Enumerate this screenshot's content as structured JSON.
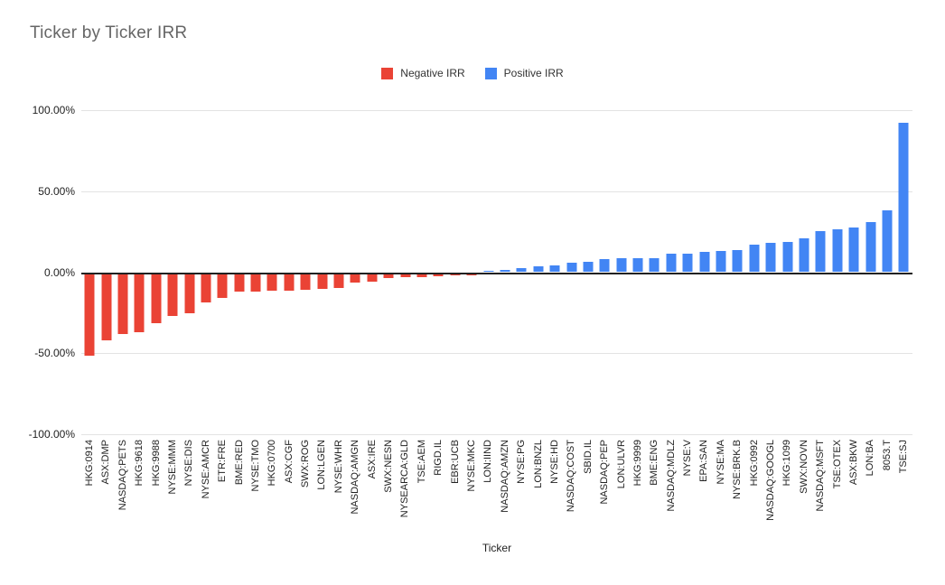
{
  "title": "Ticker by Ticker IRR",
  "legend": {
    "negative": {
      "label": "Negative IRR",
      "color": "#EA4335"
    },
    "positive": {
      "label": "Positive IRR",
      "color": "#4285F4"
    }
  },
  "x_axis_title": "Ticker",
  "chart_data": {
    "type": "bar",
    "title": "Ticker by Ticker IRR",
    "xlabel": "Ticker",
    "ylabel": "",
    "ylim": [
      -100,
      100
    ],
    "grid": true,
    "legend_position": "top-center",
    "y_ticks": [
      {
        "label": "100.00%",
        "value": 100
      },
      {
        "label": "50.00%",
        "value": 50
      },
      {
        "label": "0.00%",
        "value": 0
      },
      {
        "label": "-50.00%",
        "value": -50
      },
      {
        "label": "-100.00%",
        "value": -100
      }
    ],
    "negative_color": "#EA4335",
    "positive_color": "#4285F4",
    "categories": [
      "HKG:0914",
      "ASX:DMP",
      "NASDAQ:PETS",
      "HKG:9618",
      "HKG:9988",
      "NYSE:MMM",
      "NYSE:DIS",
      "NYSE:AMCR",
      "ETR:FRE",
      "BME:RED",
      "NYSE:TMO",
      "HKG:0700",
      "ASX:CGF",
      "SWX:ROG",
      "LON:LGEN",
      "NYSE:WHR",
      "NASDAQ:AMGN",
      "ASX:IRE",
      "SWX:NESN",
      "NYSEARCA:GLD",
      "TSE:AEM",
      "RIGD.IL",
      "EBR:UCB",
      "NYSE:MKC",
      "LON:IIND",
      "NASDAQ:AMZN",
      "NYSE:PG",
      "LON:BNZL",
      "NYSE:HD",
      "NASDAQ:COST",
      "SBID.IL",
      "NASDAQ:PEP",
      "LON:ULVR",
      "HKG:9999",
      "BME:ENG",
      "NASDAQ:MDLZ",
      "NYSE:V",
      "EPA:SAN",
      "NYSE:MA",
      "NYSE:BRK.B",
      "HKG:0992",
      "NASDAQ:GOOGL",
      "HKG:1099",
      "SWX:NOVN",
      "NASDAQ:MSFT",
      "TSE:OTEX",
      "ASX:BKW",
      "LON:BA",
      "8053.T",
      "TSE:SJ"
    ],
    "values": [
      -51.3,
      -42.0,
      -38.0,
      -37.0,
      -31.6,
      -27.0,
      -25.5,
      -18.6,
      -15.8,
      -12.0,
      -11.7,
      -11.5,
      -11.2,
      -10.6,
      -10.4,
      -10.0,
      -6.6,
      -5.7,
      -3.4,
      -3.3,
      -3.0,
      -2.6,
      -2.1,
      -1.7,
      0.9,
      1.5,
      2.4,
      3.7,
      4.2,
      5.7,
      6.2,
      8.2,
      8.5,
      8.6,
      8.8,
      11.3,
      11.5,
      12.8,
      13.0,
      13.6,
      16.9,
      18.0,
      18.5,
      20.9,
      25.6,
      26.5,
      27.8,
      31.1,
      38.0,
      92.4
    ]
  }
}
